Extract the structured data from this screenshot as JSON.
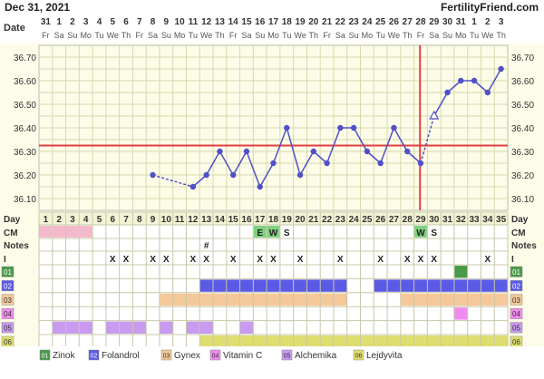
{
  "date_title": "Dec 31, 2021",
  "site_name": "FertilityFriend.com",
  "row_labels": {
    "date": "Date",
    "day": "Day",
    "cm": "CM",
    "notes": "Notes",
    "intercourse": "I"
  },
  "dates": [
    "31",
    "1",
    "2",
    "3",
    "4",
    "5",
    "6",
    "7",
    "8",
    "9",
    "10",
    "11",
    "12",
    "13",
    "14",
    "15",
    "16",
    "17",
    "18",
    "19",
    "20",
    "21",
    "22",
    "23",
    "24",
    "25",
    "26",
    "27",
    "28",
    "29",
    "30",
    "31",
    "1",
    "2",
    "3"
  ],
  "weekdays": [
    "Fr",
    "Sa",
    "Su",
    "Mo",
    "Tu",
    "We",
    "Th",
    "Fr",
    "Sa",
    "Su",
    "Mo",
    "Tu",
    "We",
    "Th",
    "Fr",
    "Sa",
    "Su",
    "Mo",
    "Tu",
    "We",
    "Th",
    "Fr",
    "Sa",
    "Su",
    "Mo",
    "Tu",
    "We",
    "Th",
    "Fr",
    "Sa",
    "Su",
    "Mo",
    "Tu",
    "We",
    "Th"
  ],
  "cycle_days": [
    "1",
    "2",
    "3",
    "4",
    "5",
    "6",
    "7",
    "8",
    "9",
    "10",
    "11",
    "12",
    "13",
    "14",
    "15",
    "16",
    "17",
    "18",
    "19",
    "20",
    "21",
    "22",
    "23",
    "24",
    "25",
    "26",
    "27",
    "28",
    "29",
    "30",
    "31",
    "32",
    "33",
    "34",
    "35"
  ],
  "chart_data": {
    "type": "line",
    "ylim": [
      36.05,
      36.75
    ],
    "yticks": [
      "36.10",
      "36.20",
      "36.30",
      "36.40",
      "36.50",
      "36.60",
      "36.70"
    ],
    "x": [
      9,
      12,
      13,
      14,
      15,
      16,
      17,
      18,
      19,
      20,
      21,
      22,
      23,
      24,
      25,
      26,
      27,
      28,
      29,
      30,
      31,
      32,
      33,
      34,
      35
    ],
    "temps": [
      36.2,
      36.15,
      36.2,
      36.3,
      36.2,
      36.3,
      36.15,
      36.25,
      36.4,
      36.2,
      36.3,
      36.25,
      36.4,
      36.4,
      36.3,
      36.25,
      36.4,
      36.3,
      36.25,
      36.45,
      36.55,
      36.6,
      36.6,
      36.55,
      36.65
    ],
    "dashed_segments": [
      [
        9,
        12
      ],
      [
        29,
        30
      ]
    ],
    "open_marker_day": 30,
    "coverline": 36.325,
    "ovulation_day": 29
  },
  "cm_entries": [
    {
      "day": 17,
      "code": "E",
      "color": "#7fd17f"
    },
    {
      "day": 18,
      "code": "W",
      "color": "#7fd17f"
    },
    {
      "day": 19,
      "code": "S",
      "color": ""
    },
    {
      "day": 29,
      "code": "W",
      "color": "#7fd17f"
    },
    {
      "day": 30,
      "code": "S",
      "color": ""
    }
  ],
  "period_days": [
    1,
    2,
    3,
    4
  ],
  "notes_marks": [
    {
      "day": 13,
      "symbol": "#"
    }
  ],
  "intercourse_days": [
    6,
    7,
    9,
    10,
    12,
    13,
    15,
    17,
    18,
    20,
    23,
    26,
    28,
    29,
    30,
    34
  ],
  "intercourse_symbol": "X",
  "medications": [
    {
      "code": "01",
      "name": "Zinok",
      "color": "#4a9a4a",
      "days": [
        32
      ]
    },
    {
      "code": "02",
      "name": "Folandrol",
      "color": "#5a5ae6",
      "days": [
        13,
        14,
        15,
        16,
        17,
        18,
        19,
        20,
        21,
        22,
        23,
        26,
        27,
        28,
        29,
        30,
        31,
        32,
        33,
        34,
        35
      ]
    },
    {
      "code": "03",
      "name": "Gynex",
      "color": "#f5c89a",
      "days": [
        10,
        11,
        12,
        13,
        14,
        15,
        16,
        17,
        18,
        19,
        20,
        21,
        22,
        23,
        28,
        29,
        30,
        31,
        32,
        33,
        34,
        35
      ]
    },
    {
      "code": "04",
      "name": "Vitamin C",
      "color": "#f08cf0",
      "days": [
        32
      ]
    },
    {
      "code": "05",
      "name": "Alchemika",
      "color": "#c89af0",
      "days": [
        2,
        3,
        4,
        6,
        7,
        8,
        10,
        12,
        13,
        16
      ]
    },
    {
      "code": "06",
      "name": "Lejdyvita",
      "color": "#dede70",
      "days": [
        13,
        14,
        15,
        16,
        17,
        18,
        19,
        20,
        21,
        22,
        23,
        24,
        25,
        26,
        27,
        28,
        29,
        30,
        31,
        32,
        33,
        34,
        35
      ]
    }
  ]
}
